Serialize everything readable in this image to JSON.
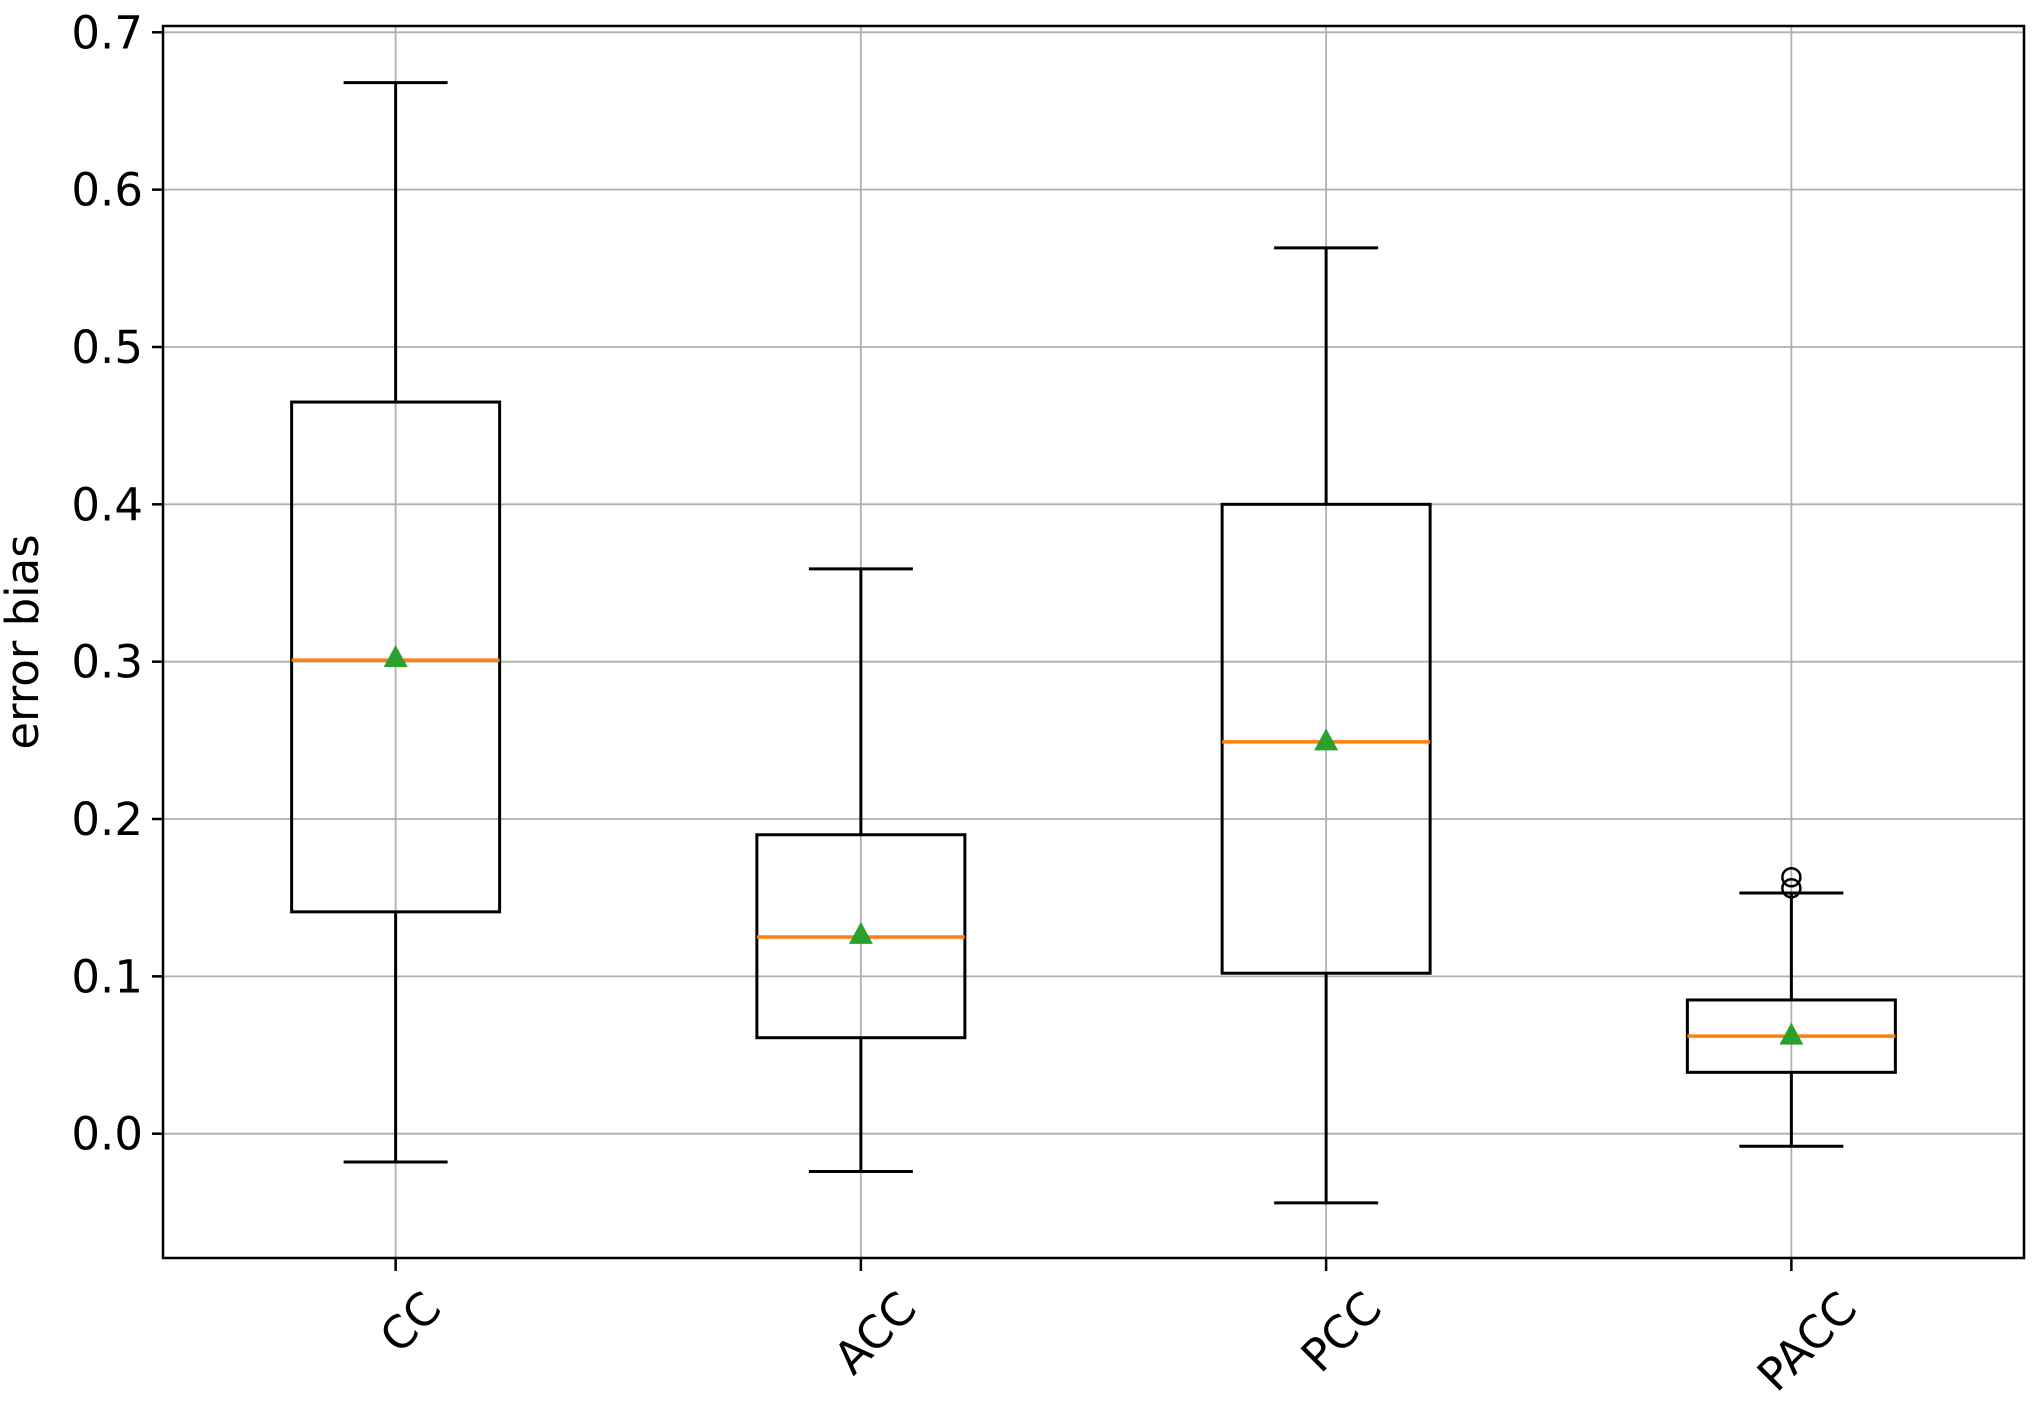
{
  "figure": {
    "background": "#ffffff"
  },
  "chart_data": {
    "type": "boxplot",
    "title": "",
    "xlabel": "",
    "ylabel": "error bias",
    "categories": [
      "CC",
      "ACC",
      "PCC",
      "PACC"
    ],
    "ylim": [
      -0.079,
      0.704
    ],
    "yticks": [
      0.0,
      0.1,
      0.2,
      0.3,
      0.4,
      0.5,
      0.6,
      0.7
    ],
    "ytick_labels": [
      "0.0",
      "0.1",
      "0.2",
      "0.3",
      "0.4",
      "0.5",
      "0.6",
      "0.7"
    ],
    "grid": true,
    "legend": false,
    "xtick_rotation": 45,
    "mean_marker_shape": "triangle_up",
    "flier_marker_shape": "circle",
    "colors": {
      "box": "#000000",
      "whisker": "#000000",
      "median": "#ff7f0e",
      "mean_marker": "#2ca02c",
      "grid": "#b0b0b0",
      "spine": "#000000",
      "flier": "#000000"
    },
    "series": [
      {
        "name": "CC",
        "whislo": -0.018,
        "q1": 0.141,
        "med": 0.301,
        "q3": 0.465,
        "whishi": 0.668,
        "mean": 0.303,
        "fliers": []
      },
      {
        "name": "ACC",
        "whislo": -0.024,
        "q1": 0.061,
        "med": 0.125,
        "q3": 0.19,
        "whishi": 0.359,
        "mean": 0.127,
        "fliers": []
      },
      {
        "name": "PCC",
        "whislo": -0.044,
        "q1": 0.102,
        "med": 0.249,
        "q3": 0.4,
        "whishi": 0.563,
        "mean": 0.25,
        "fliers": []
      },
      {
        "name": "PACC",
        "whislo": -0.008,
        "q1": 0.039,
        "med": 0.062,
        "q3": 0.085,
        "whishi": 0.153,
        "mean": 0.063,
        "fliers": [
          0.156,
          0.163
        ]
      }
    ]
  }
}
